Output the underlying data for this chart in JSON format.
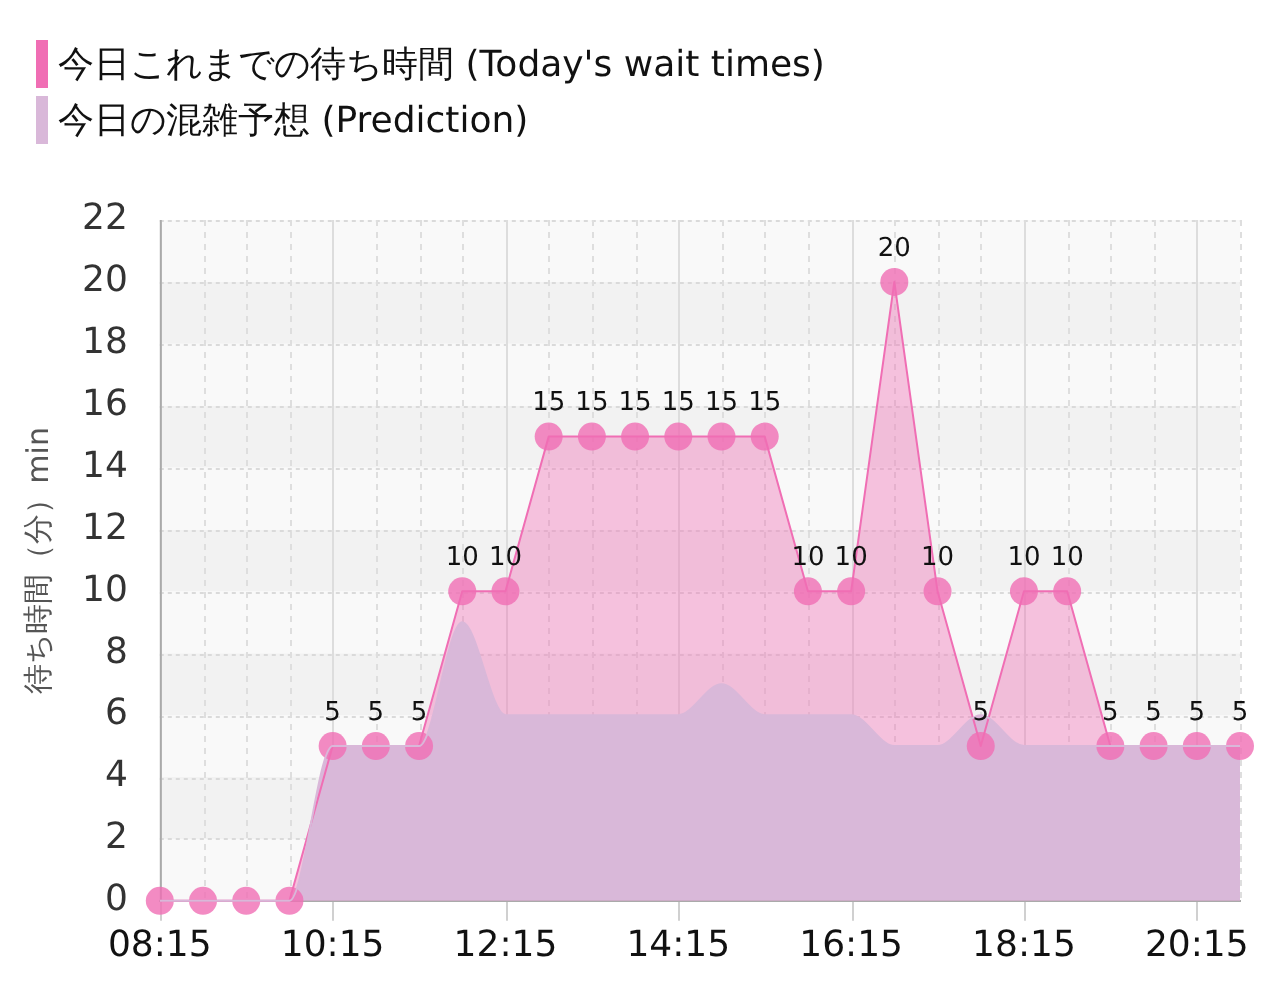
{
  "chart_data": {
    "type": "area",
    "x": [
      8.25,
      8.75,
      9.25,
      9.75,
      10.25,
      10.75,
      11.25,
      11.75,
      12.25,
      12.75,
      13.25,
      13.75,
      14.25,
      14.75,
      15.25,
      15.75,
      16.25,
      16.75,
      17.25,
      17.75,
      18.25,
      18.75,
      19.25,
      19.75,
      20.25,
      20.75
    ],
    "xlim": [
      8.25,
      20.75
    ],
    "xticks": [
      {
        "value": 8.25,
        "label": "08:15"
      },
      {
        "value": 8.75,
        "label": null
      },
      {
        "value": 9.25,
        "label": null
      },
      {
        "value": 9.75,
        "label": null
      },
      {
        "value": 10.25,
        "label": "10:15"
      },
      {
        "value": 10.75,
        "label": null
      },
      {
        "value": 11.25,
        "label": null
      },
      {
        "value": 11.75,
        "label": null
      },
      {
        "value": 12.25,
        "label": "12:15"
      },
      {
        "value": 12.75,
        "label": null
      },
      {
        "value": 13.25,
        "label": null
      },
      {
        "value": 13.75,
        "label": null
      },
      {
        "value": 14.25,
        "label": "14:15"
      },
      {
        "value": 14.75,
        "label": null
      },
      {
        "value": 15.25,
        "label": null
      },
      {
        "value": 15.75,
        "label": null
      },
      {
        "value": 16.25,
        "label": "16:15"
      },
      {
        "value": 16.75,
        "label": null
      },
      {
        "value": 17.25,
        "label": null
      },
      {
        "value": 17.75,
        "label": null
      },
      {
        "value": 18.25,
        "label": "18:15"
      },
      {
        "value": 18.75,
        "label": null
      },
      {
        "value": 19.25,
        "label": null
      },
      {
        "value": 19.75,
        "label": null
      },
      {
        "value": 20.25,
        "label": "20:15"
      },
      {
        "value": 20.75,
        "label": null
      }
    ],
    "ylim": [
      0,
      22
    ],
    "yticks": [
      0,
      2,
      4,
      6,
      8,
      10,
      12,
      14,
      16,
      18,
      20,
      22
    ],
    "ylabel": "待ち時間（分）min",
    "grid": true,
    "legend": "top left",
    "marker": "circle",
    "series": [
      {
        "name": "今日これまでの待ち時間 (Today's wait times)",
        "color": "#f06eb4",
        "values": [
          0,
          0,
          0,
          0,
          5,
          5,
          5,
          10,
          10,
          15,
          15,
          15,
          15,
          15,
          15,
          10,
          10,
          20,
          10,
          5,
          10,
          10,
          5,
          5,
          5,
          5
        ],
        "value_labels": [
          null,
          null,
          null,
          null,
          "5",
          "5",
          "5",
          "10",
          "10",
          "15",
          "15",
          "15",
          "15",
          "15",
          "15",
          "10",
          "10",
          "20",
          "10",
          "5",
          "10",
          "10",
          "5",
          "5",
          "5",
          "5"
        ]
      },
      {
        "name": "今日の混雑予想 (Prediction)",
        "color": "#d9b8d9",
        "marker": "none",
        "values": [
          0,
          0,
          0,
          0,
          5,
          5,
          5,
          9,
          6,
          6,
          6,
          6,
          6,
          7,
          6,
          6,
          6,
          5,
          5,
          6,
          5,
          5,
          5,
          5,
          5,
          5
        ]
      }
    ]
  }
}
